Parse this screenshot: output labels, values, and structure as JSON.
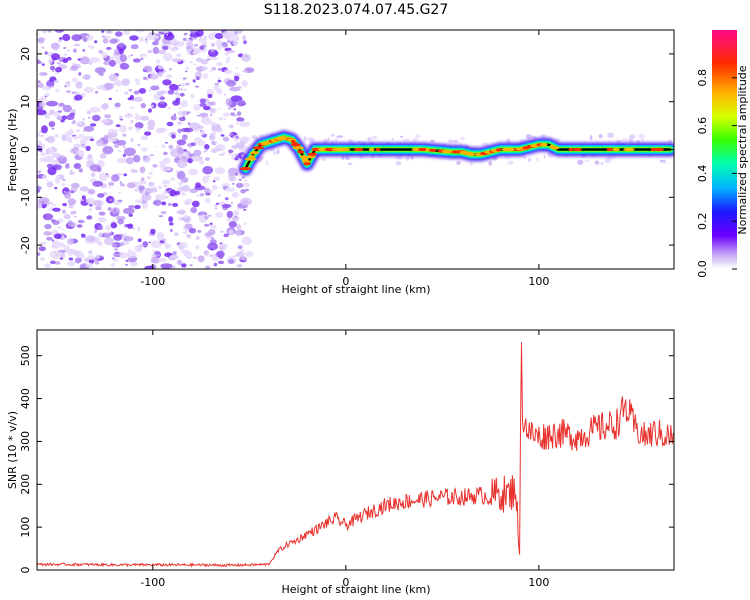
{
  "title": "S118.2023.074.07.45.G27",
  "chart_data": [
    {
      "type": "heatmap",
      "xlabel": "Height of straight line (km)",
      "ylabel": "Frequency (Hz)",
      "xlim": [
        -160,
        170
      ],
      "ylim": [
        -25,
        25
      ],
      "xticks": [
        -100,
        0,
        100
      ],
      "yticks": [
        -20,
        -10,
        0,
        10,
        20
      ],
      "colorbar": {
        "label": "Normalized spectral amplitude",
        "range": [
          0,
          1
        ],
        "ticks": [
          0.0,
          0.2,
          0.4,
          0.6,
          0.8
        ],
        "colormap": "rainbow"
      },
      "noise_region_x": [
        -160,
        -50
      ],
      "signal_ridge": {
        "x": [
          -52,
          -48,
          -44,
          -40,
          -36,
          -32,
          -28,
          -24,
          -20,
          -16,
          -12,
          -8,
          -4,
          0,
          20,
          40,
          55,
          60,
          65,
          70,
          75,
          80,
          85,
          90,
          95,
          100,
          105,
          110,
          130,
          150,
          168
        ],
        "y": [
          -4,
          -1,
          1,
          1.5,
          2,
          2.5,
          2,
          0,
          -3,
          0,
          0,
          0,
          0,
          0,
          0,
          0,
          -0.5,
          -0.5,
          -1,
          -1,
          -0.5,
          0,
          0,
          0,
          0.5,
          1,
          1,
          0,
          0,
          0,
          0
        ]
      }
    },
    {
      "type": "line",
      "xlabel": "Height of straight line (km)",
      "ylabel": "SNR (10 * v/v)",
      "xlim": [
        -160,
        170
      ],
      "ylim": [
        0,
        560
      ],
      "xticks": [
        -100,
        0,
        100
      ],
      "yticks": [
        0,
        100,
        200,
        300,
        400,
        500
      ],
      "color": "#e8322e",
      "series": [
        {
          "x": [
            -160,
            -140,
            -120,
            -100,
            -80,
            -60,
            -40,
            -35,
            -30,
            -25,
            -20,
            -15,
            -10,
            -5,
            0,
            10,
            20,
            30,
            40,
            50,
            60,
            70,
            75,
            80,
            85,
            88,
            90,
            91,
            92,
            95,
            100,
            110,
            120,
            130,
            140,
            145,
            150,
            155,
            160,
            170
          ],
          "y": [
            13,
            13,
            12,
            12,
            12,
            11,
            13,
            45,
            60,
            70,
            85,
            95,
            110,
            120,
            105,
            130,
            150,
            160,
            165,
            170,
            170,
            175,
            170,
            180,
            175,
            200,
            30,
            550,
            350,
            320,
            310,
            320,
            310,
            330,
            340,
            380,
            330,
            310,
            320,
            310
          ]
        }
      ]
    }
  ]
}
